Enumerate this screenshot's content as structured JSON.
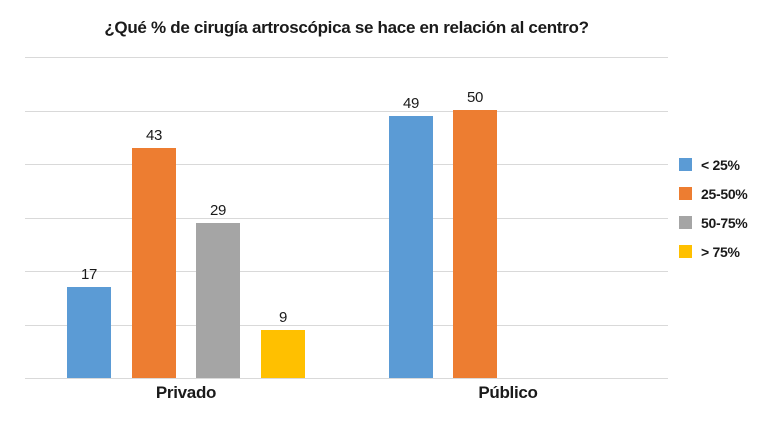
{
  "title": "¿Qué % de cirugía artroscópica se hace en relación al centro?",
  "colors": {
    "background": "#ffffff",
    "gridline": "#d9d9d9",
    "text": "#1a1a1a",
    "series_blue": "#5b9bd5",
    "series_orange": "#ed7d31",
    "series_gray": "#a5a5a5",
    "series_yellow": "#ffc000"
  },
  "chart_data": {
    "type": "bar",
    "title": "¿Qué % de cirugía artroscópica se hace en relación al centro?",
    "categories": [
      "Privado",
      "Público"
    ],
    "series": [
      {
        "name": "< 25%",
        "color": "#5b9bd5",
        "values": [
          17,
          49
        ]
      },
      {
        "name": "25-50%",
        "color": "#ed7d31",
        "values": [
          43,
          50
        ]
      },
      {
        "name": "50-75%",
        "color": "#a5a5a5",
        "values": [
          29,
          0
        ]
      },
      {
        "name": "> 75%",
        "color": "#ffc000",
        "values": [
          9,
          0
        ]
      }
    ],
    "xlabel": "",
    "ylabel": "",
    "ylim": [
      0,
      60
    ],
    "gridline_step": 10,
    "grid": true,
    "y_tick_labels_shown": false,
    "data_labels": true,
    "legend_position": "right"
  }
}
